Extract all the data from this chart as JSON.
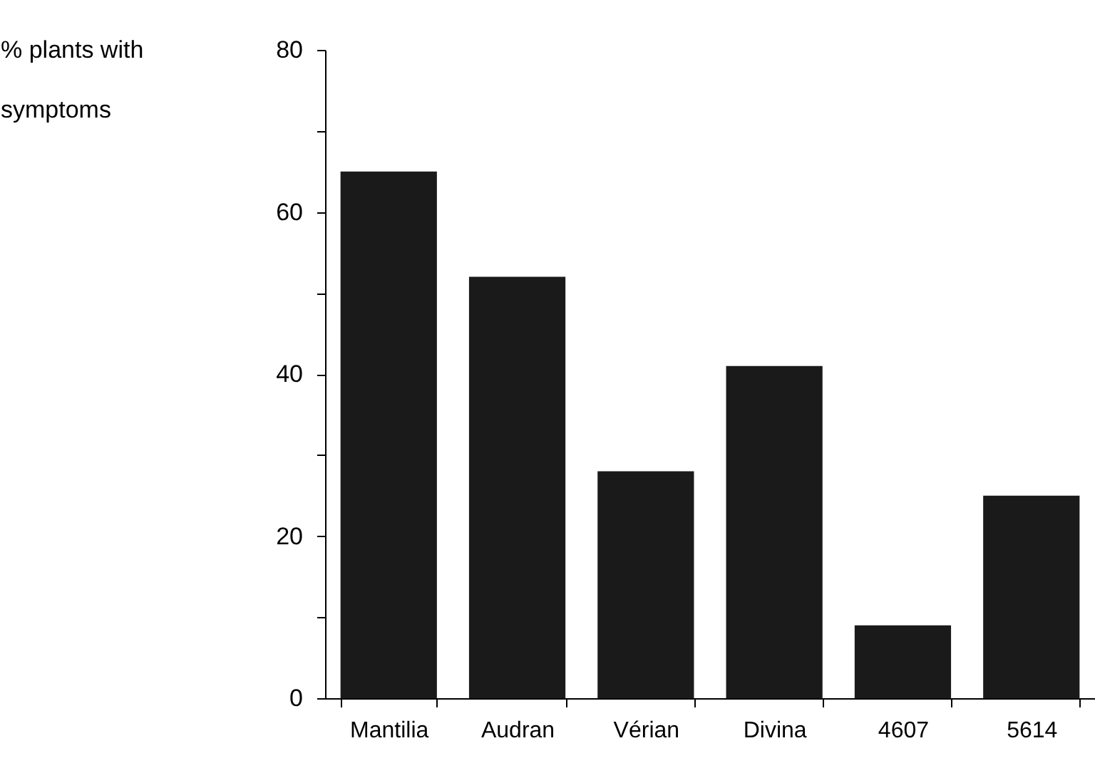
{
  "chart_data": {
    "type": "bar",
    "ylabel": "% plants with symptoms",
    "categories": [
      "Mantilia",
      "Audran",
      "Vérian",
      "Divina",
      "4607",
      "5614"
    ],
    "values": [
      65,
      52,
      28,
      41,
      9,
      25
    ],
    "color": "#1a1a1a",
    "ylim": [
      0,
      80
    ],
    "yticks": [
      0,
      {
        "value": 10,
        "label": null
      },
      20,
      {
        "value": 30,
        "label": null
      },
      40,
      {
        "value": 50,
        "label": null
      },
      60,
      {
        "value": 70,
        "label": null
      },
      80
    ],
    "grid": false
  }
}
